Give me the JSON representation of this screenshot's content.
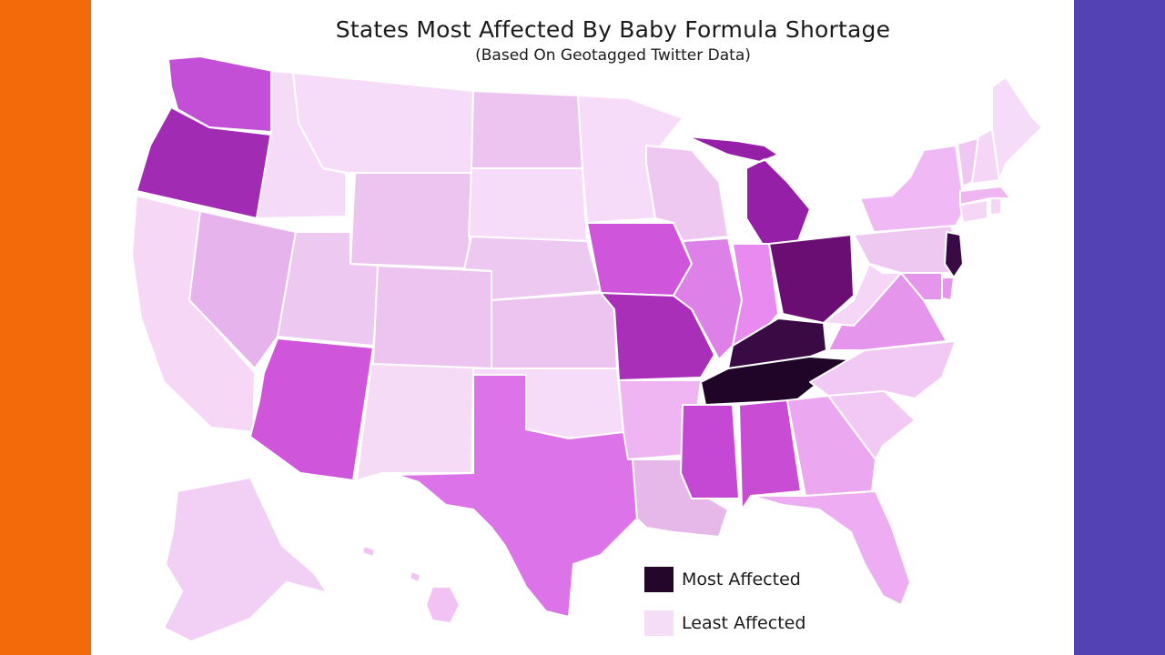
{
  "frame": {
    "left_color": "#f36a0a",
    "right_color": "#5242b3"
  },
  "title": "States Most Affected By Baby Formula Shortage",
  "subtitle": "(Based On Geotagged Twitter Data)",
  "legend": [
    {
      "label": "Most Affected",
      "color": "#23062a"
    },
    {
      "label": "Least Affected",
      "color": "#f5dcf7"
    }
  ],
  "states": {
    "WA": "#c24fd6",
    "OR": "#a22bb3",
    "CA": "#f6d8f6",
    "NV": "#e6b3ec",
    "ID": "#f6dbf8",
    "MT": "#f6dcf8",
    "WY": "#edc4ef",
    "UT": "#edc8f0",
    "AZ": "#cf55db",
    "NM": "#f6dbf7",
    "CO": "#edc4ef",
    "ND": "#edc4ef",
    "SD": "#f6dcf8",
    "NE": "#edc8f0",
    "KS": "#edc4ef",
    "OK": "#f6dcf8",
    "TX": "#dd73e8",
    "MN": "#f6dcf8",
    "IA": "#cf55db",
    "MO": "#a92fb8",
    "AR": "#efb5f2",
    "LA": "#e6b8ea",
    "WI": "#efc8f2",
    "IL": "#dd80e8",
    "MI": "#961fa8",
    "IN": "#e88af0",
    "OH": "#6a0e74",
    "KY": "#3a0a44",
    "TN": "#200528",
    "MS": "#c448d3",
    "AL": "#c84cd4",
    "GA": "#eba7f0",
    "FL": "#eeadf2",
    "SC": "#f2c8f4",
    "NC": "#f2c8f4",
    "VA": "#e596ec",
    "WV": "#f5d6f7",
    "PA": "#efc8f1",
    "NY": "#f0b8f4",
    "NJ": "#3a0a44",
    "DE": "#e596ec",
    "MD": "#e596ec",
    "CT": "#f5d6f7",
    "RI": "#f5d6f7",
    "MA": "#efb6f2",
    "VT": "#f0c6f2",
    "NH": "#f5d6f7",
    "ME": "#f5dcf8",
    "AK": "#f2d0f5",
    "HI": "#f2c2f4"
  }
}
